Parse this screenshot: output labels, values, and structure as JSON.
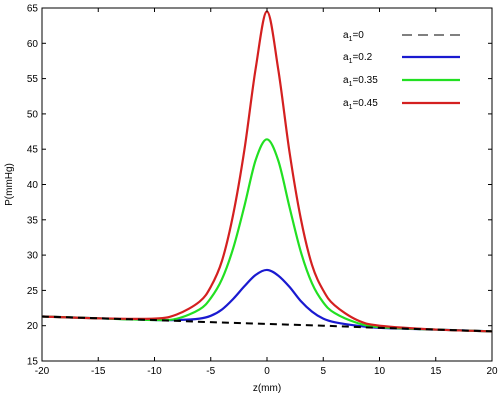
{
  "chart_data": {
    "type": "line",
    "xlabel": "z(mm)",
    "ylabel": "P(mmHg)",
    "xlim": [
      -20,
      20
    ],
    "ylim": [
      15,
      65
    ],
    "xticks": [
      -20,
      -15,
      -10,
      -5,
      0,
      5,
      10,
      15,
      20
    ],
    "yticks": [
      15,
      20,
      25,
      30,
      35,
      40,
      45,
      50,
      55,
      60,
      65
    ],
    "grid": false,
    "legend_position": "top-right",
    "series": [
      {
        "name": "a1=0",
        "legend_main": "a",
        "legend_sub": "1",
        "legend_rest": "=0",
        "color": "#000000",
        "dashed": true,
        "x": [
          -20,
          -15,
          -10,
          -5,
          0,
          5,
          10,
          15,
          20
        ],
        "y": [
          21.3,
          21.05,
          20.8,
          20.5,
          20.25,
          20.0,
          19.7,
          19.45,
          19.2
        ]
      },
      {
        "name": "a1=0.2",
        "legend_main": "a",
        "legend_sub": "1",
        "legend_rest": "=0.2",
        "color": "#1a1ad0",
        "dashed": false,
        "x": [
          -20,
          -15,
          -10,
          -8,
          -6,
          -5,
          -4,
          -3,
          -2,
          -1,
          0,
          1,
          2,
          3,
          4,
          5,
          6,
          8,
          10,
          15,
          20
        ],
        "y": [
          21.3,
          21.05,
          20.8,
          20.8,
          21.0,
          21.4,
          22.3,
          23.8,
          25.6,
          27.2,
          27.9,
          27.1,
          25.5,
          23.5,
          22.0,
          21.0,
          20.5,
          20.0,
          19.7,
          19.45,
          19.2
        ]
      },
      {
        "name": "a1=0.35",
        "legend_main": "a",
        "legend_sub": "1",
        "legend_rest": "=0.35",
        "color": "#22e022",
        "dashed": false,
        "x": [
          -20,
          -15,
          -10,
          -8,
          -6,
          -5,
          -4,
          -3,
          -2,
          -1,
          0,
          1,
          2,
          3,
          4,
          5,
          6,
          8,
          10,
          15,
          20
        ],
        "y": [
          21.3,
          21.05,
          20.8,
          21.0,
          22.3,
          23.9,
          26.6,
          31.0,
          37.0,
          43.5,
          46.4,
          43.4,
          36.8,
          30.5,
          26.0,
          23.3,
          21.8,
          20.4,
          19.8,
          19.45,
          19.2
        ]
      },
      {
        "name": "a1=0.45",
        "legend_main": "a",
        "legend_sub": "1",
        "legend_rest": "=0.45",
        "color": "#d42020",
        "dashed": false,
        "x": [
          -20,
          -15,
          -10,
          -8,
          -6,
          -5,
          -4,
          -3,
          -2,
          -1,
          0,
          1,
          2,
          3,
          4,
          5,
          6,
          8,
          10,
          15,
          20
        ],
        "y": [
          21.3,
          21.05,
          21.0,
          21.6,
          23.4,
          25.5,
          29.2,
          35.8,
          45.0,
          56.5,
          64.5,
          56.3,
          44.6,
          35.2,
          28.6,
          25.0,
          22.9,
          20.8,
          20.0,
          19.45,
          19.2
        ]
      }
    ]
  }
}
